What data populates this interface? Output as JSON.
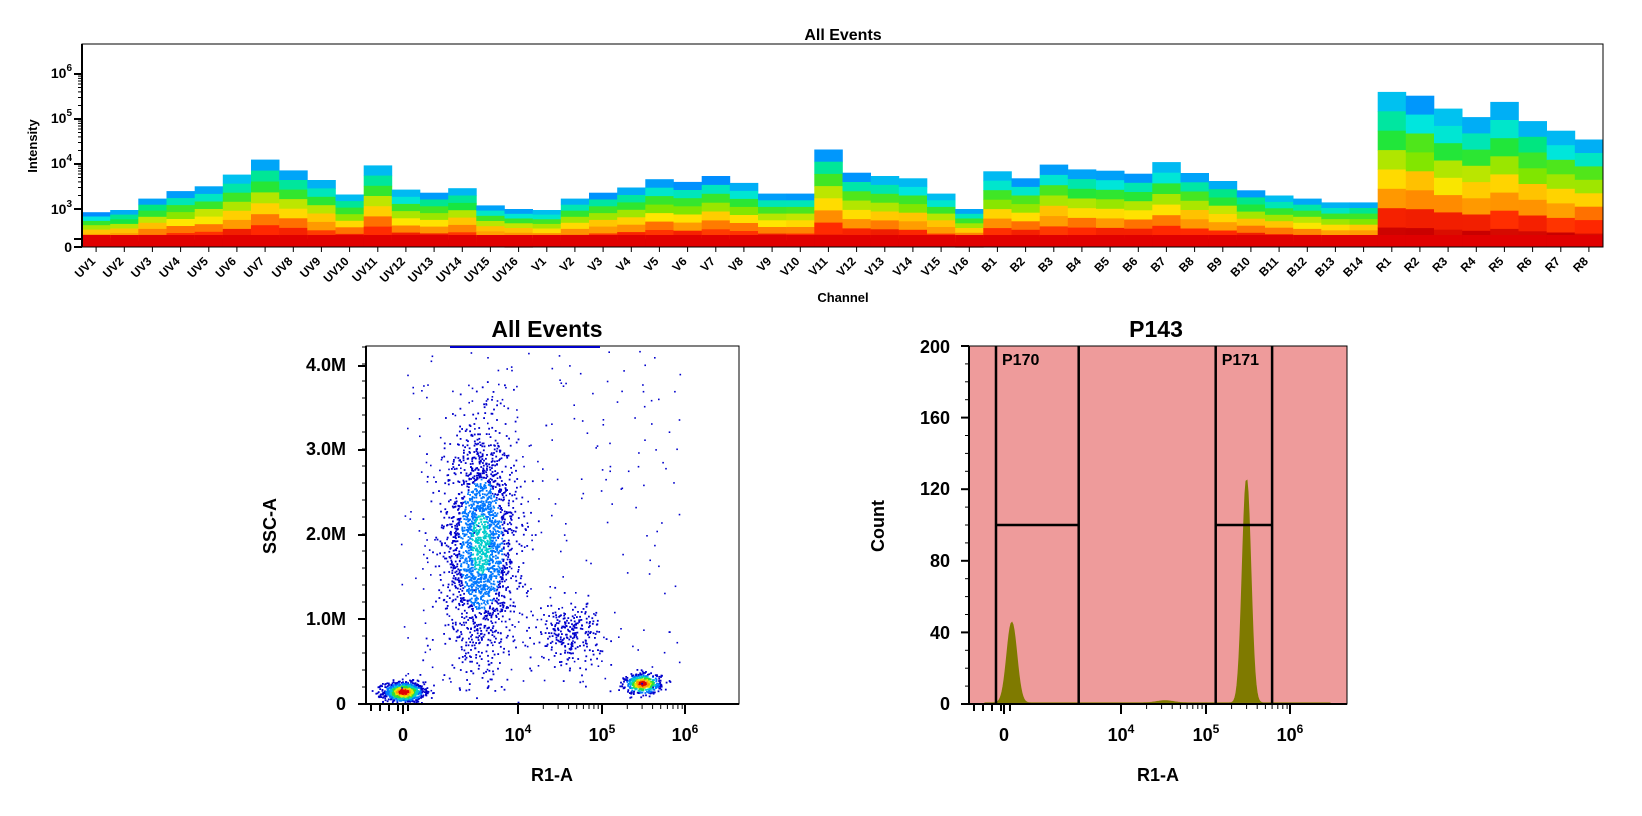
{
  "chart_data": [
    {
      "type": "heatmap",
      "title": "All Events",
      "xlabel": "Channel",
      "ylabel": "Intensity",
      "y_scale": "log",
      "y_ticks": [
        {
          "label": "0",
          "exp": ""
        },
        {
          "label": "10",
          "exp": "3"
        },
        {
          "label": "10",
          "exp": "4"
        },
        {
          "label": "10",
          "exp": "5"
        },
        {
          "label": "10",
          "exp": "6"
        }
      ],
      "y_tick_values": [
        0,
        1000,
        10000,
        100000,
        1000000
      ],
      "categories": [
        "UV1",
        "UV2",
        "UV3",
        "UV4",
        "UV5",
        "UV6",
        "UV7",
        "UV8",
        "UV9",
        "UV10",
        "UV11",
        "UV12",
        "UV13",
        "UV14",
        "UV15",
        "UV16",
        "V1",
        "V2",
        "V3",
        "V4",
        "V5",
        "V6",
        "V7",
        "V8",
        "V9",
        "V10",
        "V11",
        "V12",
        "V13",
        "V14",
        "V15",
        "V16",
        "B1",
        "B2",
        "B3",
        "B4",
        "B5",
        "B6",
        "B7",
        "B8",
        "B9",
        "B10",
        "B11",
        "B12",
        "B13",
        "B14",
        "R1",
        "R2",
        "R3",
        "R4",
        "R5",
        "R6",
        "R7",
        "R8"
      ],
      "max_intensity": [
        850,
        950,
        1700,
        2500,
        3200,
        5800,
        12500,
        7200,
        4400,
        2100,
        9300,
        2700,
        2300,
        2900,
        1200,
        1000,
        950,
        1700,
        2300,
        3000,
        4600,
        4000,
        5400,
        3800,
        2200,
        2200,
        21000,
        6400,
        5400,
        4800,
        2200,
        1000,
        6900,
        4800,
        9700,
        7600,
        7100,
        6100,
        11000,
        6300,
        4200,
        2600,
        2000,
        1700,
        1400,
        1400,
        400000,
        330000,
        170000,
        110000,
        240000,
        90000,
        55000,
        35000
      ]
    },
    {
      "type": "scatter",
      "title": "All Events",
      "xlabel": "R1-A",
      "ylabel": "SSC-A",
      "x_scale": "biexponential",
      "x_ticks": [
        {
          "label": "0",
          "exp": ""
        },
        {
          "label": "10",
          "exp": "4"
        },
        {
          "label": "10",
          "exp": "5"
        },
        {
          "label": "10",
          "exp": "6"
        }
      ],
      "y_ticks": [
        "0",
        "1.0M",
        "2.0M",
        "3.0M",
        "4.0M"
      ],
      "y_tick_values": [
        0,
        1000000,
        2000000,
        3000000,
        4000000
      ],
      "populations": [
        {
          "r1_a": 0,
          "ssc_a": 150000,
          "density": "high"
        },
        {
          "r1_a": 2000,
          "ssc_a": 1900000,
          "density": "medium"
        },
        {
          "r1_a": 40000,
          "ssc_a": 850000,
          "density": "low"
        },
        {
          "r1_a": 300000,
          "ssc_a": 250000,
          "density": "high"
        }
      ]
    },
    {
      "type": "area",
      "title": "P143",
      "xlabel": "R1-A",
      "ylabel": "Count",
      "x_scale": "biexponential",
      "x_ticks": [
        {
          "label": "0",
          "exp": ""
        },
        {
          "label": "10",
          "exp": "4"
        },
        {
          "label": "10",
          "exp": "5"
        },
        {
          "label": "10",
          "exp": "6"
        }
      ],
      "y_ticks": [
        "0",
        "40",
        "80",
        "120",
        "160",
        "200"
      ],
      "y_tick_values": [
        0,
        40,
        80,
        120,
        160,
        200
      ],
      "ylim": [
        0,
        200
      ],
      "peaks": [
        {
          "r1_a": 50,
          "count": 45
        },
        {
          "r1_a": 300000,
          "count": 125
        }
      ],
      "gates": [
        {
          "name": "P170",
          "r1_a_range": [
            -400,
            1700
          ]
        },
        {
          "name": "P171",
          "r1_a_range": [
            130000,
            600000
          ]
        }
      ],
      "colors": {
        "fill": "#7f7a00",
        "background": "#ee9b9b"
      }
    }
  ]
}
